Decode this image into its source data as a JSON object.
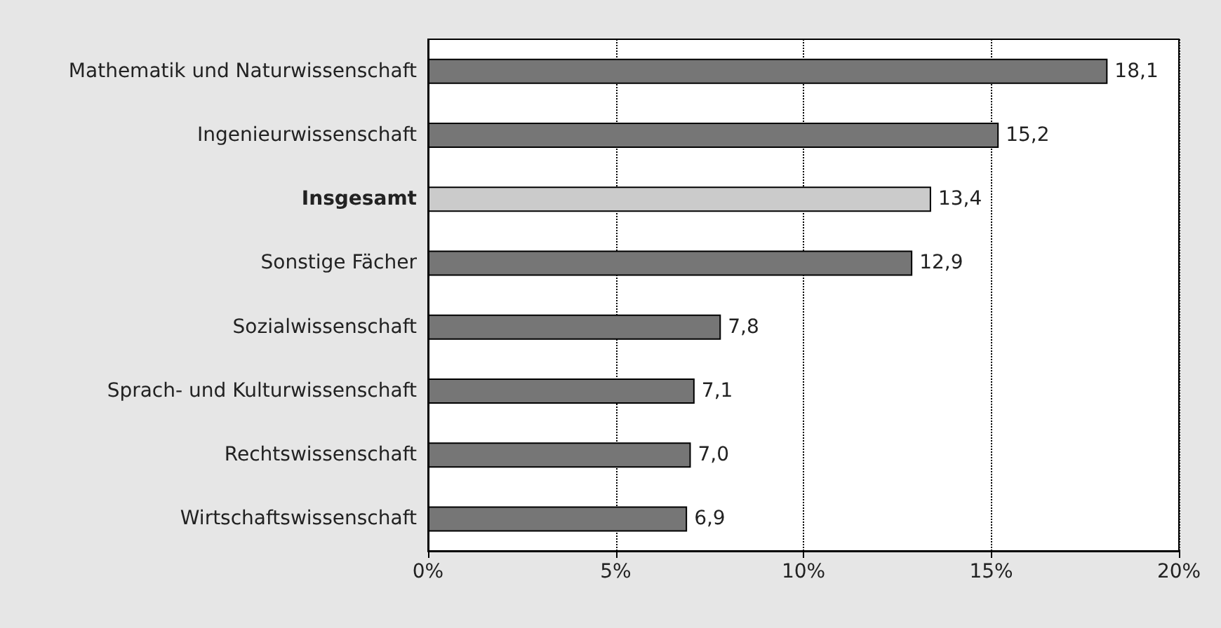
{
  "chart_data": {
    "type": "bar",
    "orientation": "horizontal",
    "categories": [
      "Mathematik und Naturwissenschaft",
      "Ingenieurwissenschaft",
      "Insgesamt",
      "Sonstige Fächer",
      "Sozialwissenschaft",
      "Sprach- und Kulturwissenschaft",
      "Rechtswissenschaft",
      "Wirtschaftswissenschaft"
    ],
    "values": [
      18.1,
      15.2,
      13.4,
      12.9,
      7.8,
      7.1,
      7.0,
      6.9
    ],
    "value_labels": [
      "18,1",
      "15,2",
      "13,4",
      "12,9",
      "7,8",
      "7,1",
      "7,0",
      "6,9"
    ],
    "colors": [
      "#767676",
      "#767676",
      "#cbcbcb",
      "#767676",
      "#767676",
      "#767676",
      "#767676",
      "#767676"
    ],
    "xlim": [
      0,
      20
    ],
    "xticks": [
      {
        "value": 0,
        "label": "0%"
      },
      {
        "value": 5,
        "label": "5%"
      },
      {
        "value": 10,
        "label": "10%"
      },
      {
        "value": 15,
        "label": "15%"
      },
      {
        "value": 20,
        "label": "20%"
      }
    ],
    "grid": "x"
  }
}
